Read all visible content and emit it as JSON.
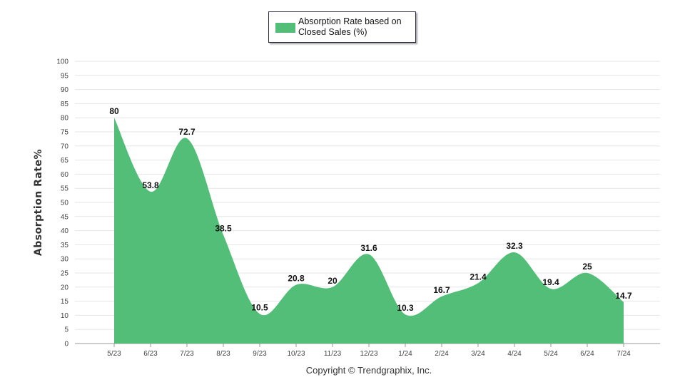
{
  "chart_data": {
    "type": "area",
    "categories": [
      "5/23",
      "6/23",
      "7/23",
      "8/23",
      "9/23",
      "10/23",
      "11/23",
      "12/23",
      "1/24",
      "2/24",
      "3/24",
      "4/24",
      "5/24",
      "6/24",
      "7/24"
    ],
    "series": [
      {
        "name": "Absorption Rate based on Closed Sales (%)",
        "values": [
          80,
          53.8,
          72.7,
          38.5,
          10.5,
          20.8,
          20,
          31.6,
          10.3,
          16.7,
          21.4,
          32.3,
          19.4,
          25,
          14.7
        ],
        "color": "#52be78"
      }
    ],
    "ylabel": "Absorption Rate%",
    "xlabel": "",
    "ylim": [
      0,
      100
    ],
    "ytick_step": 5,
    "grid": true,
    "legend": "top-center"
  },
  "footer": {
    "copyright": "Copyright © Trendgraphix, Inc."
  },
  "colors": {
    "area": "#52be78",
    "grid": "#e6e6e6",
    "axis": "#999999"
  }
}
